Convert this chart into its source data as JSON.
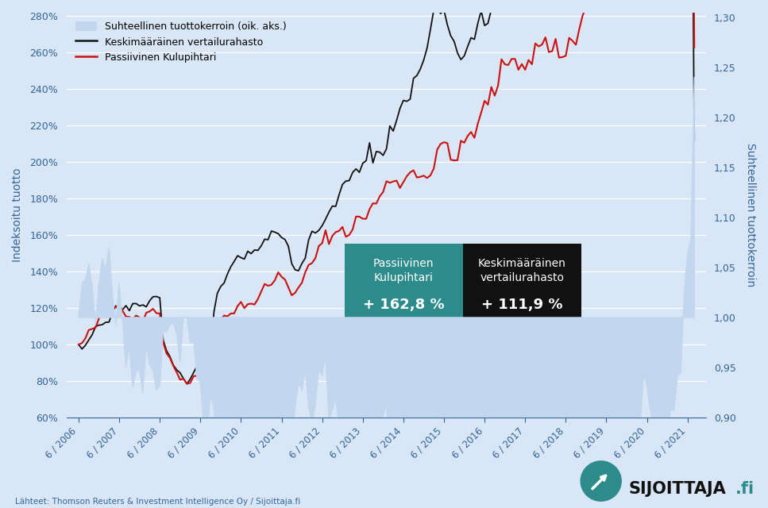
{
  "ylabel_left": "Indeksoitu tuotto",
  "ylabel_right": "Suhteellinen tuottokerroin",
  "source_text": "Lähteet: Thomson Reuters & Investment Intelligence Oy / Sijoittaja.fi",
  "legend_shade": "Suhteellinen tuottokerroin (oik. aks.)",
  "legend_black": "Keskimääräinen vertailurahasto",
  "legend_red": "Passiivinen Kulupihtari",
  "box_teal_title": "Passiivinen\nKulupihtari",
  "box_teal_value": "+ 162,8 %",
  "box_black_title": "Keskimääräinen\nvertailurahasto",
  "box_black_value": "+ 111,9 %",
  "bg_color": "#d9e6f5",
  "shade_color": "#c2d6ee",
  "teal_color": "#2e8b8b",
  "black_color": "#111111",
  "red_color": "#cc1111",
  "text_color": "#336699"
}
